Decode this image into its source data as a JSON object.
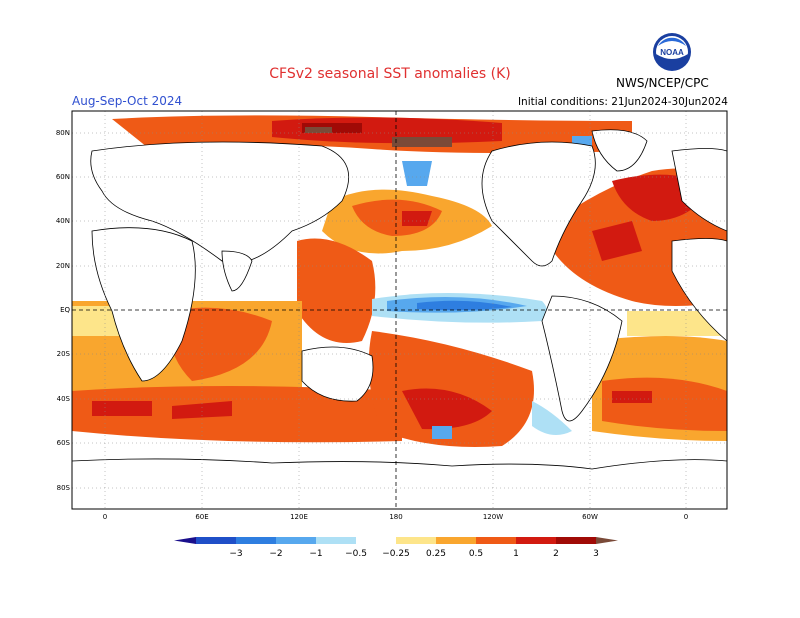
{
  "title": "CFSv2 seasonal SST anomalies (K)",
  "season": "Aug-Sep-Oct 2024",
  "initial_conditions": "Initial conditions: 21Jun2024-30Jun2024",
  "agency": "NWS/NCEP/CPC",
  "logo_text": "NOAA",
  "lat_labels": [
    "80N",
    "60N",
    "40N",
    "20N",
    "EQ",
    "20S",
    "40S",
    "60S",
    "80S"
  ],
  "lon_labels": [
    "0",
    "60E",
    "120E",
    "180",
    "120W",
    "60W",
    "0"
  ],
  "colorbar": {
    "tick_labels": [
      "−3",
      "−2",
      "−1",
      "−0.5",
      "−0.25",
      "0.25",
      "0.5",
      "1",
      "2",
      "3"
    ],
    "colors": [
      "#1a0f8c",
      "#1f4fc8",
      "#2e7ee0",
      "#57a8ee",
      "#aee0f5",
      "#ffffff",
      "#fde58a",
      "#f9a62e",
      "#ef5a16",
      "#d21a10",
      "#a00a06",
      "#7a4a38"
    ]
  },
  "map_colors": {
    "land": "#ffffff",
    "weak_warm": "#fde58a",
    "warm": "#f9a62e",
    "warmer": "#ef5a16",
    "hot": "#d21a10",
    "very_hot": "#a00a06",
    "extreme": "#7a4a38",
    "weak_cold": "#aee0f5",
    "cold": "#57a8ee",
    "colder": "#2e7ee0"
  }
}
